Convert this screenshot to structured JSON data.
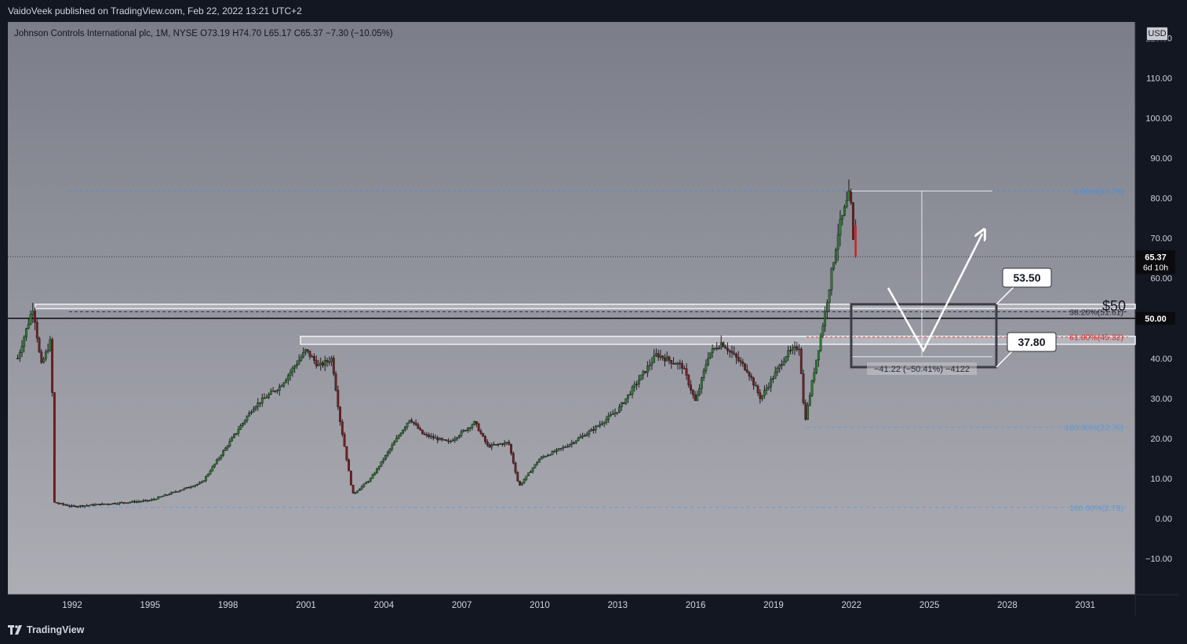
{
  "header": {
    "published_by": "VaidoVeek published on TradingView.com, Feb 22, 2022 13:21 UTC+2"
  },
  "legend": {
    "symbol_line": "Johnson Controls International plc, 1M, NYSE  O73.19  H74.70  L65.17  C65.37  −7.30 (−10.05%)"
  },
  "footer": {
    "brand": "TradingView"
  },
  "price_axis": {
    "currency": "USD",
    "ticks": [
      "120.00",
      "110.00",
      "100.00",
      "90.00",
      "80.00",
      "70.00",
      "60.00",
      "40.00",
      "30.00",
      "20.00",
      "10.00",
      "0.00",
      "−10.00"
    ],
    "last_price_label": "65.37",
    "countdown_label": "6d 10h",
    "level_label": "50.00"
  },
  "chart_data": {
    "type": "candlestick",
    "title": "Johnson Controls International plc, 1M, NYSE",
    "x_ticks": [
      "1992",
      "1995",
      "1998",
      "2001",
      "2004",
      "2007",
      "2010",
      "2013",
      "2016",
      "2019",
      "2022",
      "2025",
      "2028",
      "2031"
    ],
    "ylim": [
      -19,
      124
    ],
    "last_close": 65.37,
    "ohlc_last": {
      "open": 73.19,
      "high": 74.7,
      "low": 65.17,
      "close": 65.37,
      "change": -7.3,
      "change_pct": -10.05
    },
    "price_path": [
      {
        "year": 1989.9,
        "value": 40
      },
      {
        "year": 1990.5,
        "value": 53
      },
      {
        "year": 1990.8,
        "value": 38
      },
      {
        "year": 1991.2,
        "value": 45
      },
      {
        "year": 1991.3,
        "value": 4
      },
      {
        "year": 1992,
        "value": 3
      },
      {
        "year": 1995,
        "value": 4.5
      },
      {
        "year": 1997,
        "value": 9
      },
      {
        "year": 1999,
        "value": 28
      },
      {
        "year": 2000,
        "value": 33
      },
      {
        "year": 2001,
        "value": 42
      },
      {
        "year": 2001.5,
        "value": 38
      },
      {
        "year": 2002,
        "value": 40
      },
      {
        "year": 2002.3,
        "value": 25
      },
      {
        "year": 2002.8,
        "value": 6
      },
      {
        "year": 2003.5,
        "value": 10
      },
      {
        "year": 2005,
        "value": 25
      },
      {
        "year": 2005.5,
        "value": 21
      },
      {
        "year": 2006.5,
        "value": 19
      },
      {
        "year": 2007.5,
        "value": 24
      },
      {
        "year": 2008,
        "value": 18
      },
      {
        "year": 2008.8,
        "value": 19
      },
      {
        "year": 2009.2,
        "value": 8
      },
      {
        "year": 2010,
        "value": 15
      },
      {
        "year": 2011,
        "value": 18
      },
      {
        "year": 2012,
        "value": 22
      },
      {
        "year": 2013,
        "value": 27
      },
      {
        "year": 2014.5,
        "value": 41
      },
      {
        "year": 2015.5,
        "value": 38
      },
      {
        "year": 2016,
        "value": 29
      },
      {
        "year": 2016.5,
        "value": 41
      },
      {
        "year": 2017,
        "value": 44
      },
      {
        "year": 2018,
        "value": 37
      },
      {
        "year": 2018.5,
        "value": 30
      },
      {
        "year": 2019.5,
        "value": 41
      },
      {
        "year": 2020,
        "value": 43
      },
      {
        "year": 2020.2,
        "value": 24
      },
      {
        "year": 2021,
        "value": 52
      },
      {
        "year": 2021.5,
        "value": 72
      },
      {
        "year": 2021.95,
        "value": 81.5
      },
      {
        "year": 2022.1,
        "value": 65.37
      }
    ],
    "levels": [
      {
        "name": "resistance_zone_top",
        "value": 53.5
      },
      {
        "name": "level_50",
        "value": 50.0
      },
      {
        "name": "support_zone",
        "low": 43.5,
        "high": 45.5
      }
    ],
    "fib_levels": [
      {
        "label": "0.00%(81.79)",
        "value": 81.79
      },
      {
        "label": "38.20%(51.61)",
        "value": 51.61
      },
      {
        "label": "61.80%(45.32)",
        "value": 45.32
      },
      {
        "label": "100.00%(22.78)",
        "value": 22.78
      },
      {
        "label": "100.00%(2.79)",
        "value": 2.79
      }
    ],
    "annotations": {
      "level_text": "$50",
      "callout_upper": "53.50",
      "callout_lower": "37.80",
      "range_measure": "−41.22 (−50.41%) −4122"
    }
  }
}
